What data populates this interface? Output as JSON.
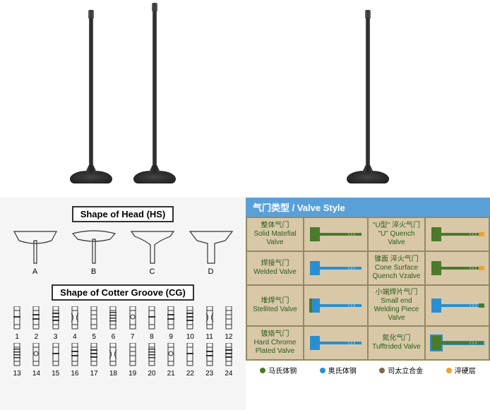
{
  "valve_photos": {
    "left_count": 2,
    "right_count": 1,
    "stem_heights": [
      210,
      220,
      210
    ]
  },
  "headers": {
    "shape_head": "Shape of Head (HS)",
    "shape_groove": "Shape of Cotter Groove (CG)",
    "valve_style": "气门类型 / Valve Style"
  },
  "head_shapes": [
    {
      "label": "A"
    },
    {
      "label": "B"
    },
    {
      "label": "C"
    },
    {
      "label": "D"
    }
  ],
  "grooves": [
    "1",
    "2",
    "3",
    "4",
    "5",
    "6",
    "7",
    "8",
    "9",
    "10",
    "11",
    "12",
    "13",
    "14",
    "15",
    "16",
    "17",
    "18",
    "19",
    "20",
    "21",
    "22",
    "23",
    "24"
  ],
  "valve_styles": {
    "rows": [
      {
        "left_cn": "整体气门",
        "left_en": "Solid Matefial Valve",
        "left_color": "#4a7a2a",
        "right_cn": "\"U型\" 淬火气门",
        "right_en": "\"U\" Quench Valve",
        "right_color": "#4a7a2a",
        "right_tip": "#f0a030"
      },
      {
        "left_cn": "焊接气门",
        "left_en": "Welded Valve",
        "left_color": "#2a8fd0",
        "left_accent": "#4a7a2a",
        "right_cn": "锥面 淬火气门",
        "right_en": "Cone Surface Quench Vzalve",
        "right_color": "#4a7a2a",
        "right_tip": "#f0a030"
      },
      {
        "left_cn": "堆焊气门",
        "left_en": "Stellited Valve",
        "left_color": "#2a8fd0",
        "left_edge": "#4a7a2a",
        "right_cn": "小端焊片气门",
        "right_en": "Small end Welding Piece Valve",
        "right_color": "#2a8fd0",
        "right_tip": "#4a7a2a"
      },
      {
        "left_cn": "镀烙气门",
        "left_en": "Hard Chrome Plated Valve",
        "left_color": "#2a8fd0",
        "right_cn": "氮化气门",
        "right_en": "Tufftrided Valve",
        "right_color": "#4a7a2a",
        "right_outline": "#2a8fd0"
      }
    ]
  },
  "legend": [
    {
      "color": "#4a7a2a",
      "label": "马氏体钢"
    },
    {
      "color": "#2a8fd0",
      "label": "奥氏体钢"
    },
    {
      "color": "#7a6a4a",
      "label": "司太立合金"
    },
    {
      "color": "#f0a030",
      "label": "淬硬层"
    }
  ]
}
